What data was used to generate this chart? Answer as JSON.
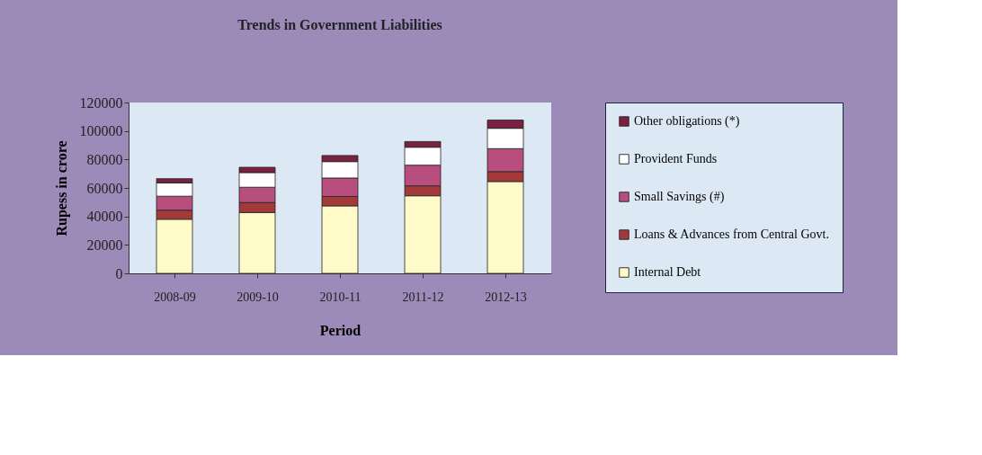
{
  "chart_data": {
    "type": "bar",
    "title": "Trends in Government Liabilities",
    "xlabel": "Period",
    "ylabel": "Rupess in crore",
    "categories": [
      "2008-09",
      "2009-10",
      "2010-11",
      "2011-12",
      "2012-13"
    ],
    "stacked": true,
    "series": [
      {
        "name": "Internal Debt",
        "color": "#fffbc8",
        "values": [
          38000,
          42700,
          47400,
          54500,
          64500
        ]
      },
      {
        "name": "Loans & Advances from Central Govt.",
        "color": "#a33a3a",
        "values": [
          6400,
          7000,
          6600,
          7000,
          7000
        ]
      },
      {
        "name": "Small Savings (#)",
        "color": "#b84e7e",
        "values": [
          9800,
          10800,
          13000,
          14500,
          16100
        ]
      },
      {
        "name": "Provident Funds",
        "color": "#ffffff",
        "values": [
          9300,
          10300,
          11500,
          12600,
          14300
        ]
      },
      {
        "name": "Other obligations (*)",
        "color": "#7a2040",
        "values": [
          3000,
          3700,
          4300,
          4000,
          5800
        ]
      }
    ],
    "ylim": [
      0,
      120000
    ],
    "yticks": [
      0,
      20000,
      40000,
      60000,
      80000,
      100000,
      120000
    ],
    "grid": false,
    "legend": "right"
  }
}
